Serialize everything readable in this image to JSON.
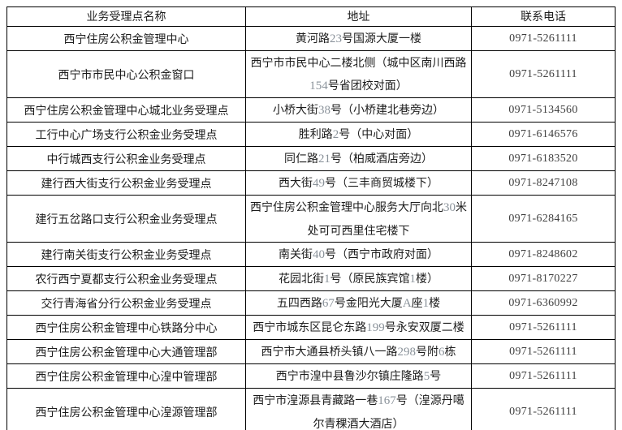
{
  "colors": {
    "border": "#000000",
    "text": "#1c1c1c",
    "address_number": "#8a929a",
    "phone_text": "#3f3f3f",
    "page_background": "#ffffff"
  },
  "table": {
    "headers": [
      "业务受理点名称",
      "地址",
      "联系电话"
    ],
    "rows": [
      {
        "name": "西宁住房公积金管理中心",
        "address": "黄河路23号国源大厦一楼",
        "phone": "0971-5261111"
      },
      {
        "name": "西宁市市民中心公积金窗口",
        "address": "西宁市市民中心二楼北侧（城中区南川西路154号省团校对面）",
        "phone": "0971-5261111"
      },
      {
        "name": "西宁住房公积金管理中心城北业务受理点",
        "address": "小桥大街38号（小桥建北巷旁边）",
        "phone": "0971-5134560"
      },
      {
        "name": "工行中心广场支行公积金业务受理点",
        "address": "胜利路2号（中心对面）",
        "phone": "0971-6146576"
      },
      {
        "name": "中行城西支行公积金业务受理点",
        "address": "同仁路21号（柏威酒店旁边）",
        "phone": "0971-6183520"
      },
      {
        "name": "建行西大街支行公积金业务受理点",
        "address": "西大街49号（三丰商贸城楼下）",
        "phone": "0971-8247108"
      },
      {
        "name": "建行五岔路口支行公积金业务受理点",
        "address": "西宁住房公积金管理中心服务大厅向北30米处可可西里住宅楼下",
        "phone": "0971-6284165"
      },
      {
        "name": "建行南关街支行公积金业务受理点",
        "address": "南关街40号（西宁市政府对面）",
        "phone": "0971-8248602"
      },
      {
        "name": "农行西宁夏都支行公积金业务受理点",
        "address": "花园北街1号（原民族宾馆1楼）",
        "phone": "0971-8170227"
      },
      {
        "name": "交行青海省分行公积金业务受理点",
        "address": "五四西路67号金阳光大厦A座1楼",
        "phone": "0971-6360992"
      },
      {
        "name": "西宁住房公积金管理中心铁路分中心",
        "address": "西宁市城东区昆仑东路199号永安双厦二楼",
        "phone": "0971-5261111"
      },
      {
        "name": "西宁住房公积金管理中心大通管理部",
        "address": "西宁市大通县桥头镇八一路298号附6栋",
        "phone": "0971-5261111"
      },
      {
        "name": "西宁住房公积金管理中心湟中管理部",
        "address": "西宁市湟中县鲁沙尔镇庄隆路5号",
        "phone": "0971-5261111"
      },
      {
        "name": "西宁住房公积金管理中心湟源管理部",
        "address": "西宁市湟源县青藏路一巷167号（湟源丹噶尔青稞酒大酒店）",
        "phone": "0971-5261111"
      }
    ]
  }
}
